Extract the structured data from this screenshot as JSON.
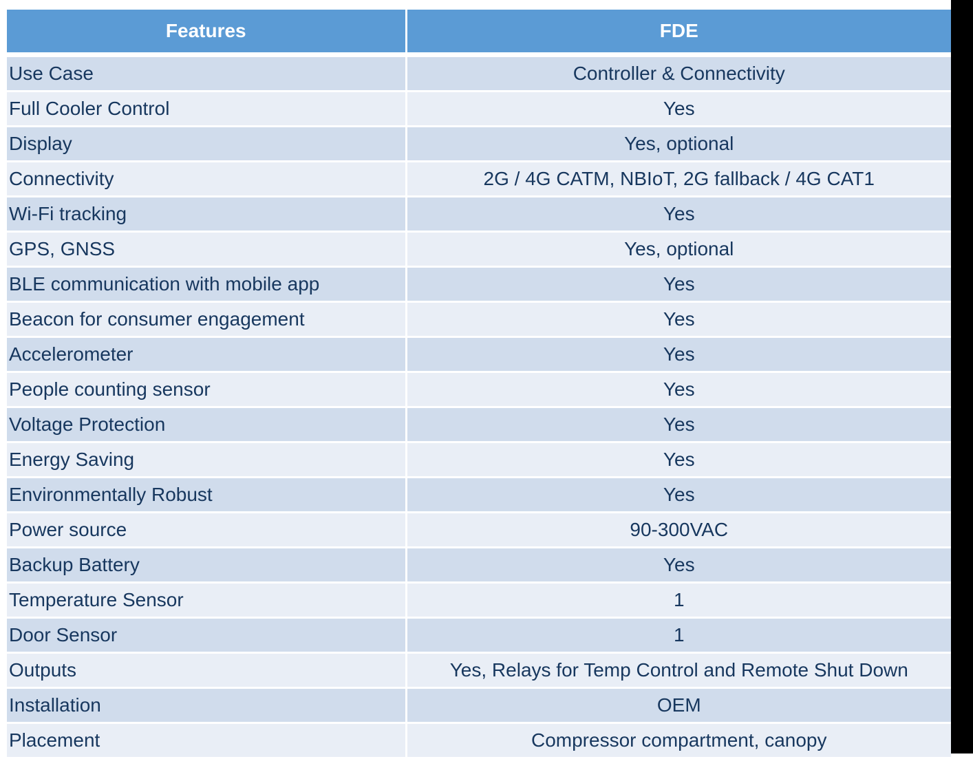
{
  "table": {
    "headers": [
      "Features",
      "FDE"
    ],
    "rows": [
      [
        "Use Case",
        "Controller & Connectivity"
      ],
      [
        "Full Cooler Control",
        "Yes"
      ],
      [
        "Display",
        "Yes, optional"
      ],
      [
        "Connectivity",
        "2G / 4G CATM, NBIoT, 2G fallback / 4G CAT1"
      ],
      [
        "Wi-Fi tracking",
        "Yes"
      ],
      [
        "GPS, GNSS",
        "Yes, optional"
      ],
      [
        "BLE communication with mobile app",
        "Yes"
      ],
      [
        "Beacon for consumer engagement",
        "Yes"
      ],
      [
        "Accelerometer",
        "Yes"
      ],
      [
        "People counting sensor",
        "Yes"
      ],
      [
        "Voltage Protection",
        "Yes"
      ],
      [
        "Energy Saving",
        "Yes"
      ],
      [
        "Environmentally Robust",
        "Yes"
      ],
      [
        "Power source",
        "90-300VAC"
      ],
      [
        "Backup Battery",
        "Yes"
      ],
      [
        "Temperature Sensor",
        "1"
      ],
      [
        "Door Sensor",
        "1"
      ],
      [
        "Outputs",
        "Yes, Relays for Temp Control and Remote Shut Down"
      ],
      [
        "Installation",
        "OEM"
      ],
      [
        "Placement",
        "Compressor compartment, canopy"
      ]
    ]
  },
  "colors": {
    "header_bg": "#5b9bd5",
    "header_text": "#ffffff",
    "row_odd_bg": "#d0dcec",
    "row_even_bg": "#e9eef6",
    "body_text": "#17375e"
  }
}
